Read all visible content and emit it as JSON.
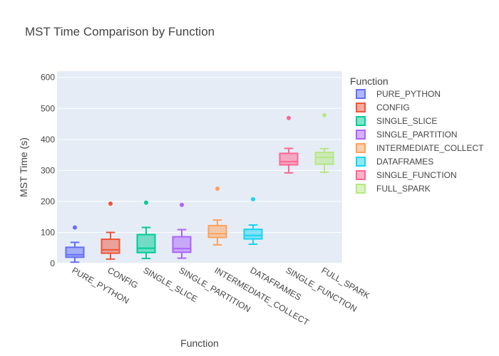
{
  "chart_data": {
    "type": "box",
    "title": "MST Time Comparison by Function",
    "xlabel": "Function",
    "ylabel": "MST Time (s)",
    "ylim": [
      0,
      620
    ],
    "yticks": [
      0,
      100,
      200,
      300,
      400,
      500,
      600
    ],
    "grid": true,
    "legend": {
      "title": "Function",
      "placement": "right"
    },
    "categories": [
      "PURE_PYTHON",
      "CONFIG",
      "SINGLE_SLICE",
      "SINGLE_PARTITION",
      "INTERMEDIATE_COLLECT",
      "DATAFRAMES",
      "SINGLE_FUNCTION",
      "FULL_SPARK"
    ],
    "series": [
      {
        "name": "PURE_PYTHON",
        "color": "#636efa",
        "min": 4,
        "q1": 20,
        "median": 28,
        "q3": 52,
        "max": 68,
        "outliers": [
          116
        ]
      },
      {
        "name": "CONFIG",
        "color": "#ef553b",
        "min": 14,
        "q1": 33,
        "median": 44,
        "q3": 78,
        "max": 100,
        "outliers": [
          193
        ]
      },
      {
        "name": "SINGLE_SLICE",
        "color": "#00cc96",
        "min": 16,
        "q1": 35,
        "median": 49,
        "q3": 93,
        "max": 116,
        "outliers": [
          196
        ]
      },
      {
        "name": "SINGLE_PARTITION",
        "color": "#ab63fa",
        "min": 17,
        "q1": 36,
        "median": 48,
        "q3": 86,
        "max": 109,
        "outliers": [
          189
        ]
      },
      {
        "name": "INTERMEDIATE_COLLECT",
        "color": "#ffa15a",
        "min": 60,
        "q1": 84,
        "median": 96,
        "q3": 122,
        "max": 140,
        "outliers": [
          241
        ]
      },
      {
        "name": "DATAFRAMES",
        "color": "#19d3f3",
        "min": 62,
        "q1": 79,
        "median": 90,
        "q3": 110,
        "max": 124,
        "outliers": [
          207
        ]
      },
      {
        "name": "SINGLE_FUNCTION",
        "color": "#ff6692",
        "min": 292,
        "q1": 318,
        "median": 328,
        "q3": 355,
        "max": 371,
        "outliers": [
          469
        ]
      },
      {
        "name": "FULL_SPARK",
        "color": "#b6e880",
        "min": 294,
        "q1": 320,
        "median": 342,
        "q3": 358,
        "max": 370,
        "outliers": [
          478
        ]
      }
    ]
  }
}
